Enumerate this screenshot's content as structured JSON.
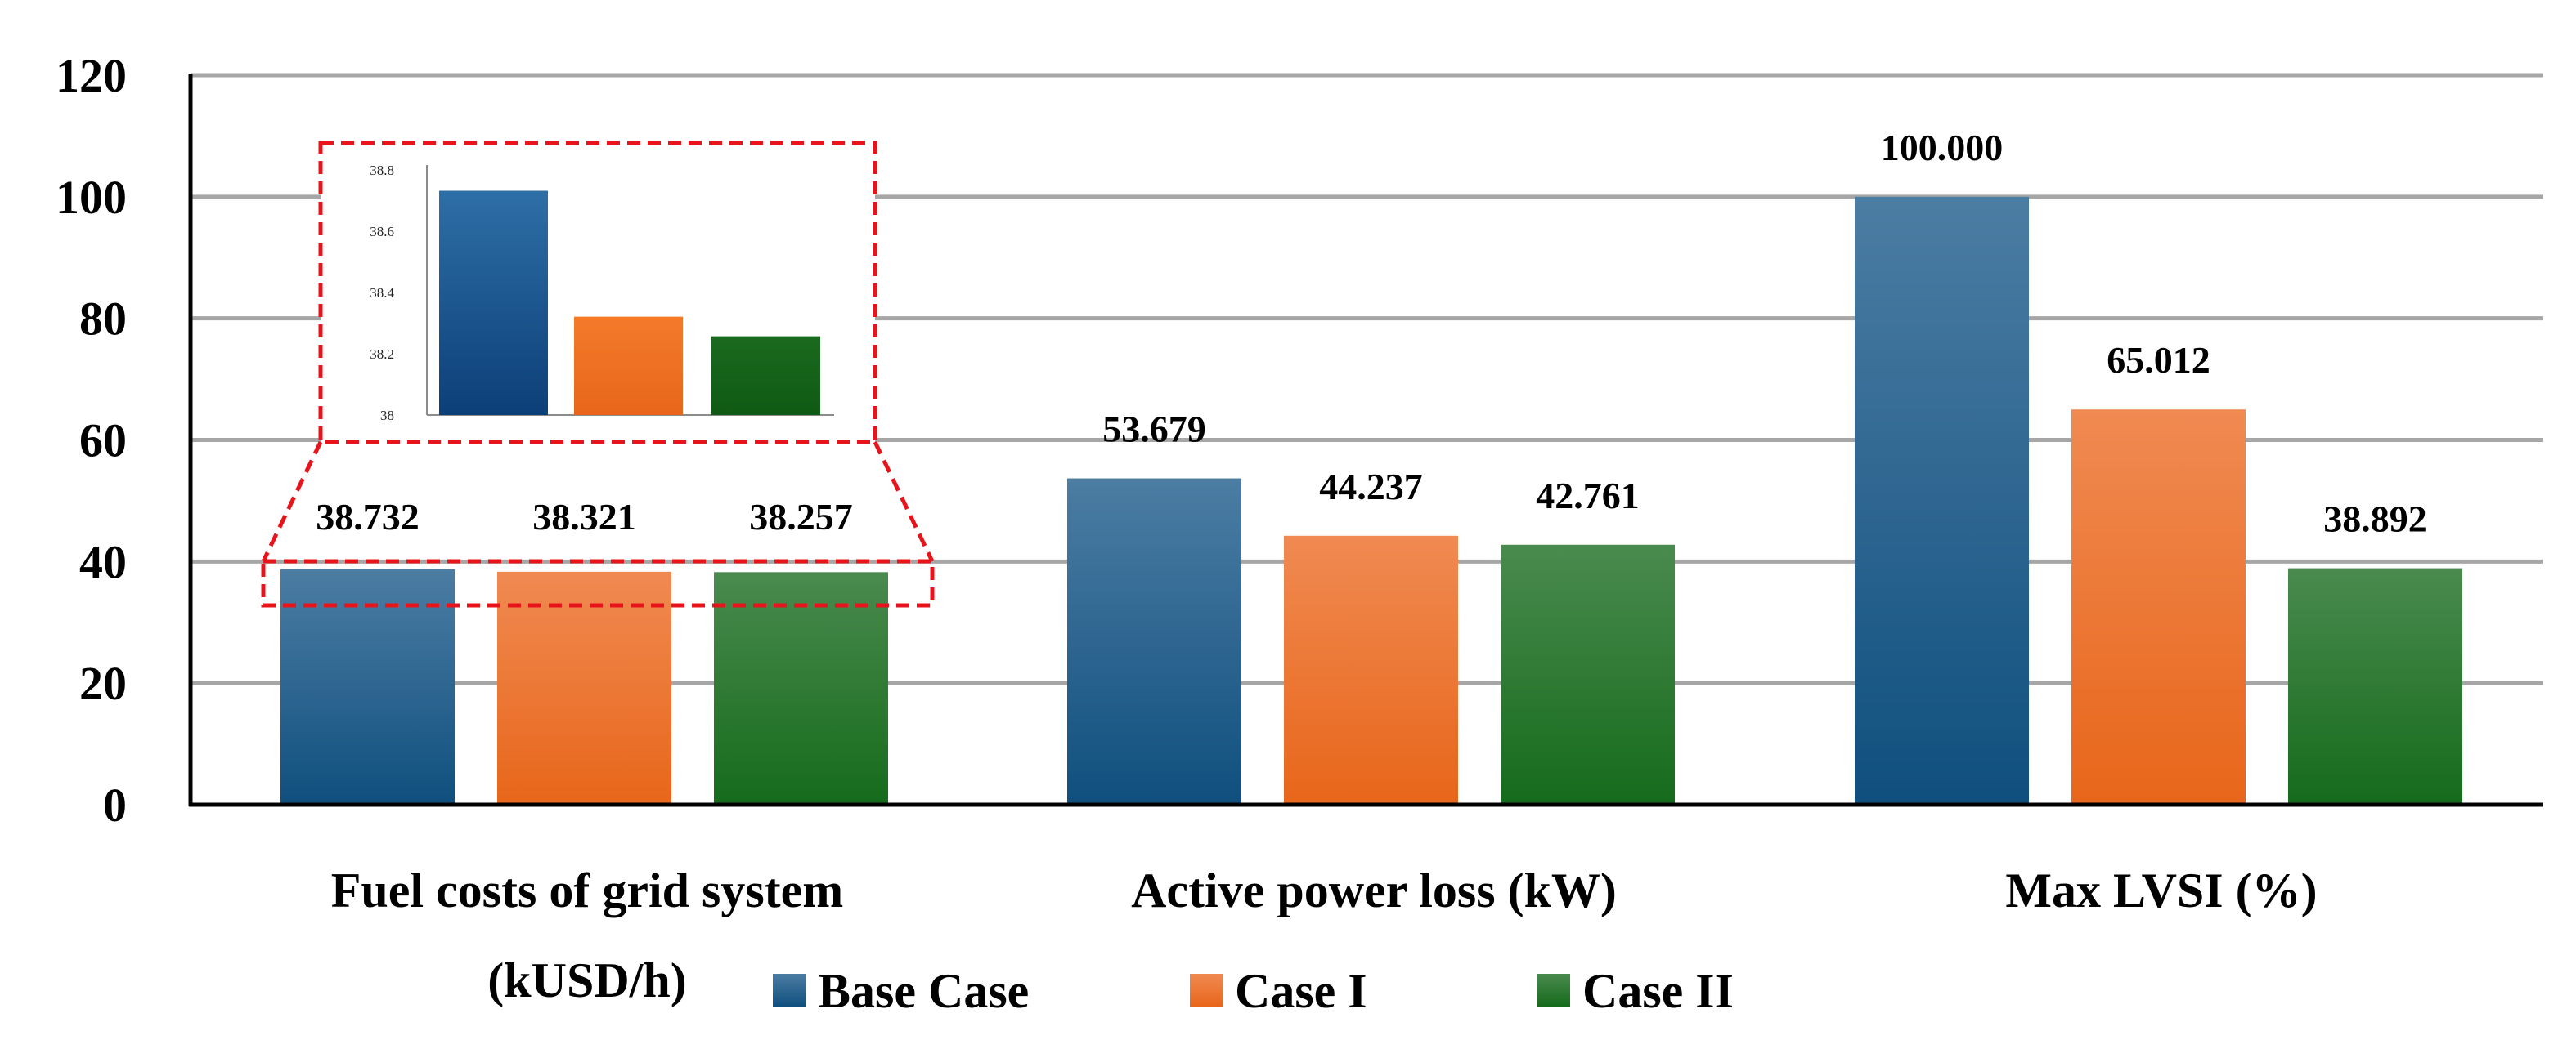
{
  "chart_data": {
    "type": "bar",
    "title": "",
    "xlabel": "",
    "ylabel": "",
    "categories": [
      [
        "Fuel costs of grid system",
        "(kUSD/h)"
      ],
      [
        "Active power loss (kW)"
      ],
      [
        "Max LVSI (%)"
      ]
    ],
    "series": [
      {
        "name": "Base Case",
        "color": "#1a5f8c",
        "values": [
          38.732,
          53.679,
          100.0
        ],
        "labels": [
          "38.732",
          "53.679",
          "100.000"
        ]
      },
      {
        "name": "Case I",
        "color": "#f07a30",
        "values": [
          38.321,
          44.237,
          65.012
        ],
        "labels": [
          "38.321",
          "44.237",
          "65.012"
        ]
      },
      {
        "name": "Case II",
        "color": "#2a7a2e",
        "values": [
          38.257,
          42.761,
          38.892
        ],
        "labels": [
          "38.257",
          "42.761",
          "38.892"
        ]
      }
    ],
    "ylim": [
      0,
      120
    ],
    "yticks": [
      "0",
      "20",
      "40",
      "60",
      "80",
      "100",
      "120"
    ],
    "grid": true,
    "legend_position": "bottom",
    "inset": {
      "description_target": "Fuel costs of grid system",
      "ylim": [
        38,
        38.8
      ],
      "yticks": [
        "38",
        "38.2",
        "38.4",
        "38.6",
        "38.8"
      ],
      "values": [
        38.732,
        38.321,
        38.257
      ]
    }
  }
}
